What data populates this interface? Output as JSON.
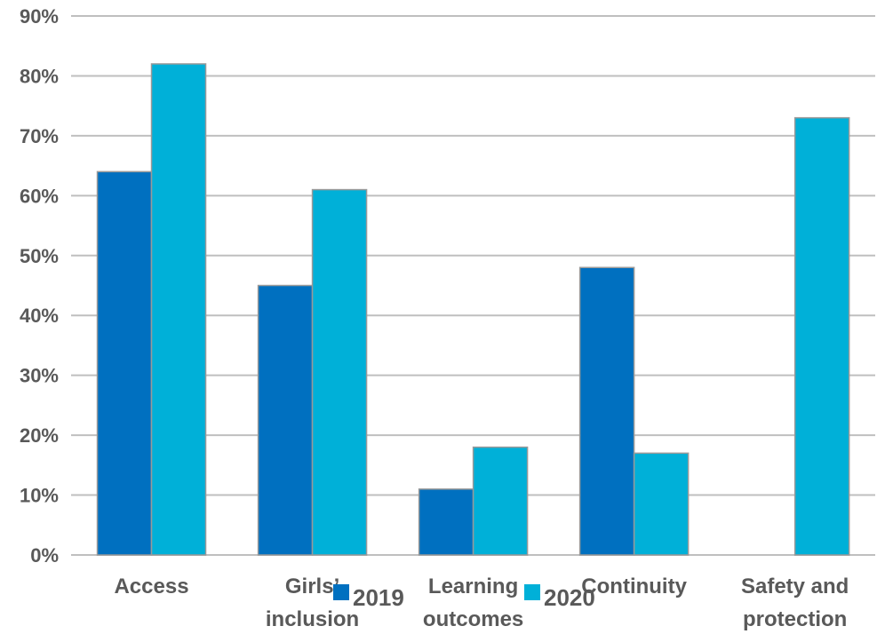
{
  "chart_data": {
    "type": "bar",
    "categories": [
      [
        "Access"
      ],
      [
        "Girls’",
        "inclusion"
      ],
      [
        "Learning",
        "outcomes"
      ],
      [
        "Continuity"
      ],
      [
        "Safety and",
        "protection"
      ]
    ],
    "series": [
      {
        "name": "2019",
        "color": "#0070c0",
        "values": [
          64,
          45,
          11,
          48,
          null
        ]
      },
      {
        "name": "2020",
        "color": "#00b0d8",
        "values": [
          82,
          61,
          18,
          17,
          73
        ]
      }
    ],
    "y_ticks": [
      "0%",
      "10%",
      "20%",
      "30%",
      "40%",
      "50%",
      "60%",
      "70%",
      "80%",
      "90%"
    ],
    "ylim": [
      0,
      90
    ],
    "y_unit": "%",
    "grid": true,
    "legend_position": "bottom-center"
  }
}
